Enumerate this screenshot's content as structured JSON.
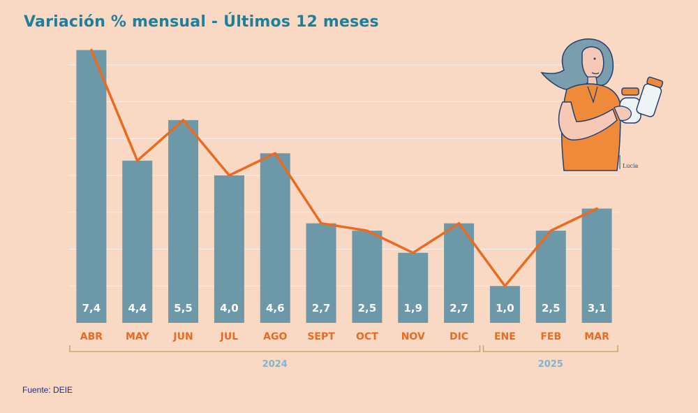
{
  "title": "Variación % mensual - Últimos 12 meses",
  "source": "Fuente: DEIE",
  "colors": {
    "bar": "#6c98a8",
    "line": "#ea6a21",
    "title": "#1f7f9a",
    "month": "#ea6a21",
    "year": "#7fb6cf",
    "background": "#f9d9c3"
  },
  "illustration": {
    "signature": "Lucía"
  },
  "chart_data": {
    "type": "bar",
    "title": "Variación % mensual - Últimos 12 meses",
    "categories": [
      "ABR",
      "MAY",
      "JUN",
      "JUL",
      "AGO",
      "SEPT",
      "OCT",
      "NOV",
      "DIC",
      "ENE",
      "FEB",
      "MAR"
    ],
    "values": [
      7.4,
      4.4,
      5.5,
      4.0,
      4.6,
      2.7,
      2.5,
      1.9,
      2.7,
      1.0,
      2.5,
      3.1
    ],
    "value_labels": [
      "7,4",
      "4,4",
      "5,5",
      "4,0",
      "4,6",
      "2,7",
      "2,5",
      "1,9",
      "2,7",
      "1,0",
      "2,5",
      "3,1"
    ],
    "overlay": "line",
    "year_groups": [
      {
        "label": "2024",
        "from": "ABR",
        "to": "DIC"
      },
      {
        "label": "2025",
        "from": "ENE",
        "to": "MAR"
      }
    ],
    "ylim": [
      0,
      8
    ],
    "grid": true,
    "xlabel": "",
    "ylabel": ""
  }
}
